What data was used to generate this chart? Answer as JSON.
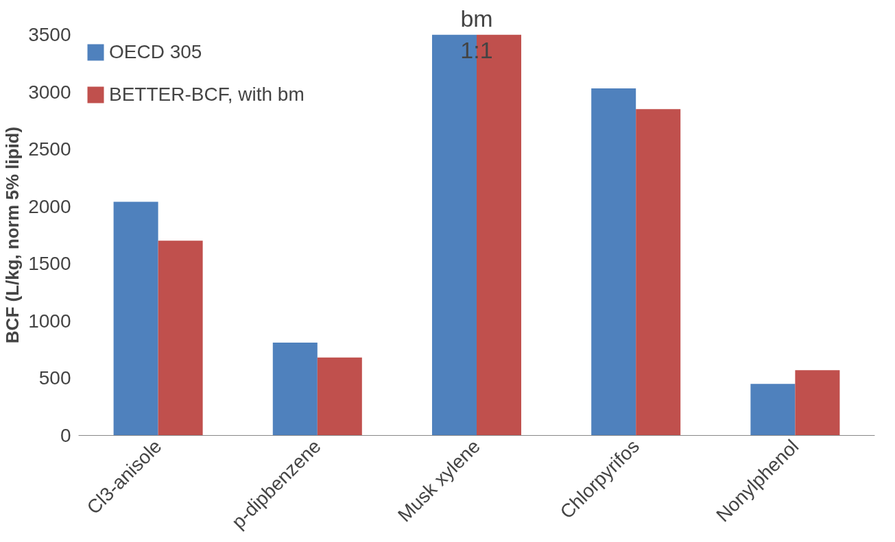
{
  "chart_data": {
    "type": "bar",
    "ylabel": "BCF (L/kg, norm 5% lipid)",
    "categories": [
      "Cl3-anisole",
      "p-dipbenzene",
      "Musk xylene",
      "Chlorpyrifos",
      "Nonylphenol"
    ],
    "series": [
      {
        "name": "OECD 305",
        "color": "#4f81bd",
        "values": [
          2040,
          810,
          3500,
          3030,
          450
        ]
      },
      {
        "name": "BETTER-BCF, with bm",
        "color": "#c0504d",
        "values": [
          1700,
          680,
          3500,
          2850,
          570
        ]
      }
    ],
    "ylim": [
      0,
      3500
    ],
    "yticks": [
      0,
      500,
      1000,
      1500,
      2000,
      2500,
      3000,
      3500
    ],
    "annotations": [
      {
        "text": "bm",
        "x": "Musk xylene",
        "y": 3500
      },
      {
        "text": "1:1",
        "x": "Musk xylene",
        "y": 3250
      }
    ],
    "grid": false,
    "legend": "top left"
  }
}
